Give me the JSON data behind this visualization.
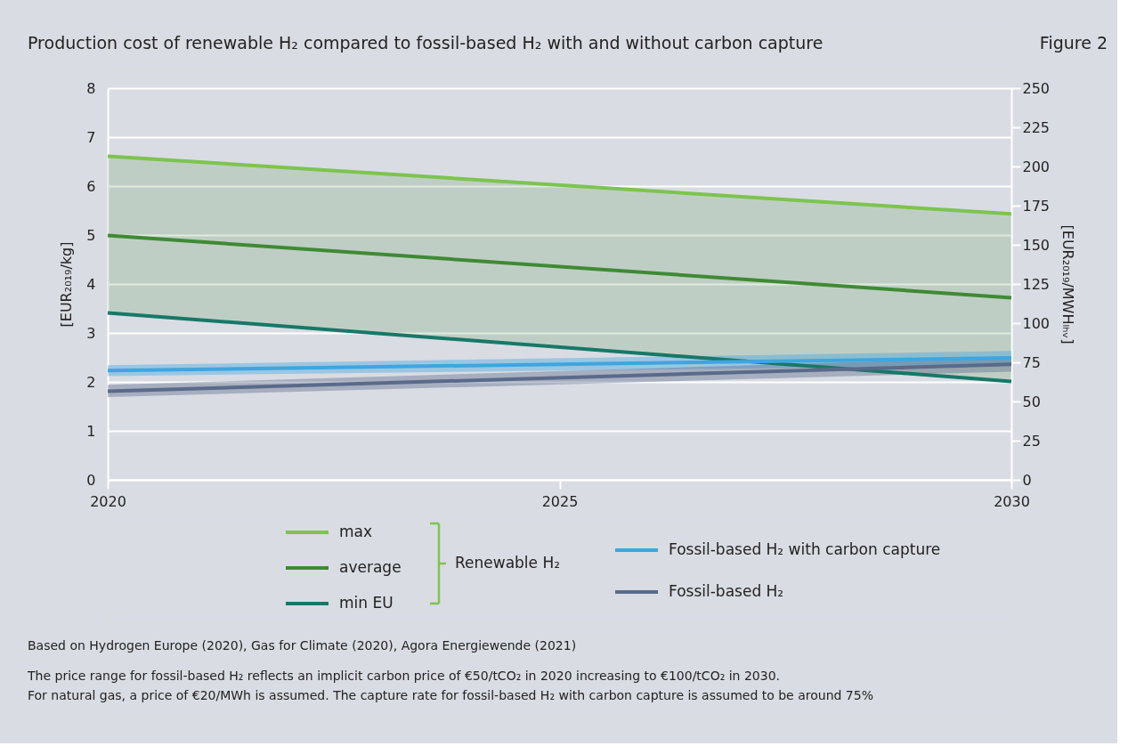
{
  "chart_data": {
    "type": "line",
    "title": "Production cost of renewable H₂ compared to fossil-based H₂ with and without carbon capture",
    "ylabel": "[EUR₂₀₁₉/kg]",
    "y2label": "[EUR₂₀₁₉/MWHₗₕᵥ]",
    "legend_title": "Renewable H₂",
    "x": [
      2020,
      2030
    ],
    "series": [
      {
        "name": "max",
        "color": "#7dc44e",
        "values": [
          6.61,
          5.43
        ]
      },
      {
        "name": "average",
        "color": "#3f8a34",
        "values": [
          4.99,
          3.72
        ],
        "lower": [
          3.41,
          2.01
        ],
        "upper": [
          6.61,
          5.43
        ]
      },
      {
        "name": "min EU",
        "color": "#177868",
        "values": [
          3.41,
          2.01
        ]
      },
      {
        "name": "Fossil-based H₂ with carbon capture",
        "color": "#3ea6e0",
        "values": [
          2.23,
          2.49
        ],
        "lower": [
          2.12,
          2.34
        ],
        "upper": [
          2.34,
          2.63
        ]
      },
      {
        "name": "Fossil-based H₂",
        "color": "#5a6a8a",
        "values": [
          1.81,
          2.36
        ],
        "lower": [
          1.69,
          2.21
        ],
        "upper": [
          1.94,
          2.5
        ]
      }
    ],
    "xlim": [
      2020,
      2030
    ],
    "xticks": [
      2020,
      2025,
      2030
    ],
    "ylim": [
      0,
      8
    ],
    "yticks": [
      0,
      1,
      2,
      3,
      4,
      5,
      6,
      7,
      8
    ],
    "y2lim": [
      0,
      250
    ],
    "y2ticks": [
      0,
      25,
      50,
      75,
      100,
      125,
      150,
      175,
      200,
      225,
      250
    ],
    "grid": "y",
    "legend": "bottom",
    "line_style": "solid",
    "marker": "none",
    "annotations": [
      "Figure 2",
      "Based on Hydrogen Europe (2020), Gas for Climate (2020), Agora Energiewende (2021)",
      "The price range for fossil-based H₂ reflects an implicit carbon price of €50/tCO₂ in 2020 increasing to €100/tCO₂ in 2030.",
      "For natural gas, a price of €20/MWh is assumed. The capture rate for fossil-based H₂ with carbon capture is assumed to be around 75%"
    ]
  }
}
